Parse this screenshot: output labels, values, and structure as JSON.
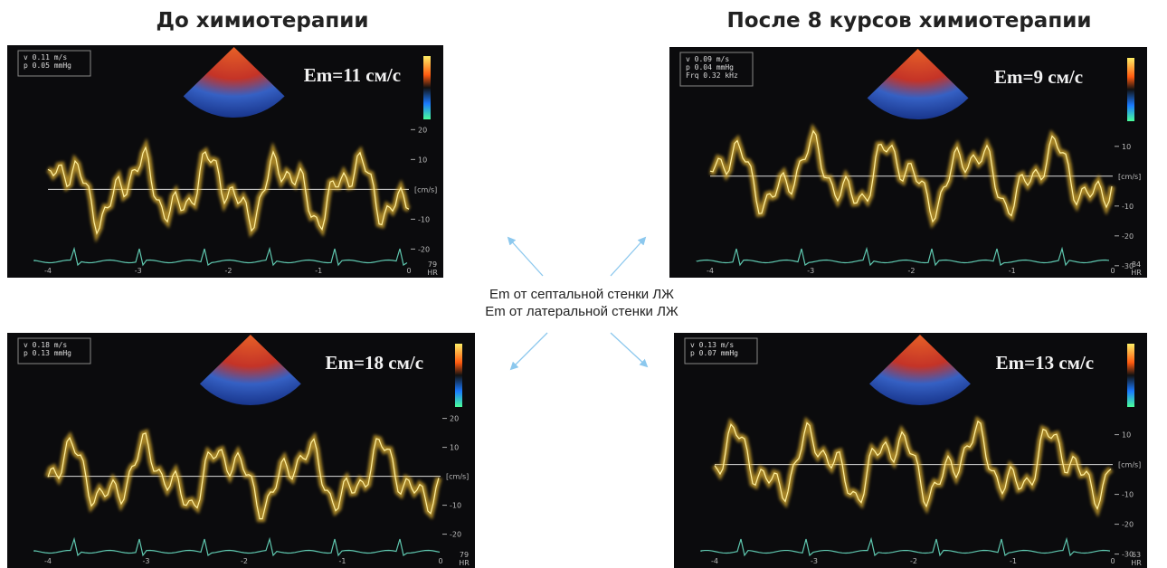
{
  "header": {
    "left_title": "До химиотерапии",
    "right_title": "После 8 курсов химиотерапии"
  },
  "center": {
    "line1": "Em от септальной стенки ЛЖ",
    "line2": "Em от латеральной стенки ЛЖ"
  },
  "panels": [
    {
      "info": [
        "v 0.11 m/s",
        "p 0.05 mmHg"
      ],
      "em": "Em=11 см/с",
      "yticks": [
        "20",
        "10",
        "-10",
        "-20"
      ],
      "unit": "[cm/s]",
      "xticks": [
        "-4",
        "-3",
        "-2",
        "-1",
        "0"
      ],
      "hr": "79",
      "hr_unit": "HR"
    },
    {
      "info": [
        "v 0.09 m/s",
        "p 0.04 mmHg",
        "Frq 0.32 kHz"
      ],
      "em": "Em=9 см/с",
      "yticks": [
        "10",
        "-10",
        "-20",
        "-30"
      ],
      "unit": "[cm/s]",
      "xticks": [
        "-4",
        "-3",
        "-2",
        "-1",
        "0"
      ],
      "hr": "84",
      "hr_unit": "HR"
    },
    {
      "info": [
        "v 0.18 m/s",
        "p 0.13 mmHg"
      ],
      "em": "Em=18 см/с",
      "yticks": [
        "20",
        "10",
        "-10",
        "-20"
      ],
      "unit": "[cm/s]",
      "xticks": [
        "-4",
        "-3",
        "-2",
        "-1",
        "0"
      ],
      "hr": "79",
      "hr_unit": "HR"
    },
    {
      "info": [
        "v 0.13 m/s",
        "p 0.07 mmHg"
      ],
      "em": "Em=13 см/с",
      "yticks": [
        "10",
        "-10",
        "-20",
        "-30"
      ],
      "unit": "[cm/s]",
      "xticks": [
        "-4",
        "-3",
        "-2",
        "-1",
        "0"
      ],
      "hr": "63",
      "hr_unit": "HR"
    }
  ]
}
